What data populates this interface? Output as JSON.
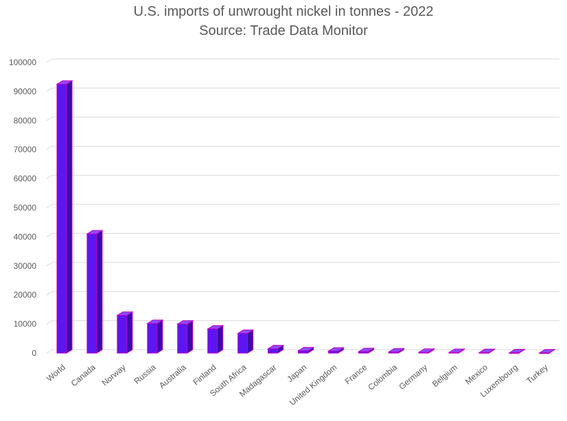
{
  "chart_data": {
    "type": "bar",
    "title": "U.S. imports of unwrought nickel in tonnes - 2022",
    "subtitle": "Source: Trade Data Monitor",
    "categories": [
      "World",
      "Canada",
      "Norway",
      "Russia",
      "Australia",
      "Finland",
      "South Africa",
      "Madagascar",
      "Japan",
      "United Kingdom",
      "France",
      "Colombia",
      "Germany",
      "Belgium",
      "Mexico",
      "Luxembourg",
      "Turkey"
    ],
    "values": [
      92500,
      41000,
      13000,
      10200,
      10000,
      8300,
      6800,
      1500,
      800,
      700,
      500,
      400,
      300,
      250,
      200,
      150,
      100
    ],
    "ylim": [
      0,
      100000
    ],
    "yticks": [
      0,
      10000,
      20000,
      30000,
      40000,
      50000,
      60000,
      70000,
      80000,
      90000,
      100000
    ],
    "grid": true,
    "legend": "none",
    "colors": {
      "bar_front": "#5b16f2",
      "bar_side": "#3a0aa8",
      "bar_top": "#8b4dff",
      "bar_edge": "#c000c0",
      "grid": "#d9d9d9",
      "text": "#595959"
    }
  }
}
